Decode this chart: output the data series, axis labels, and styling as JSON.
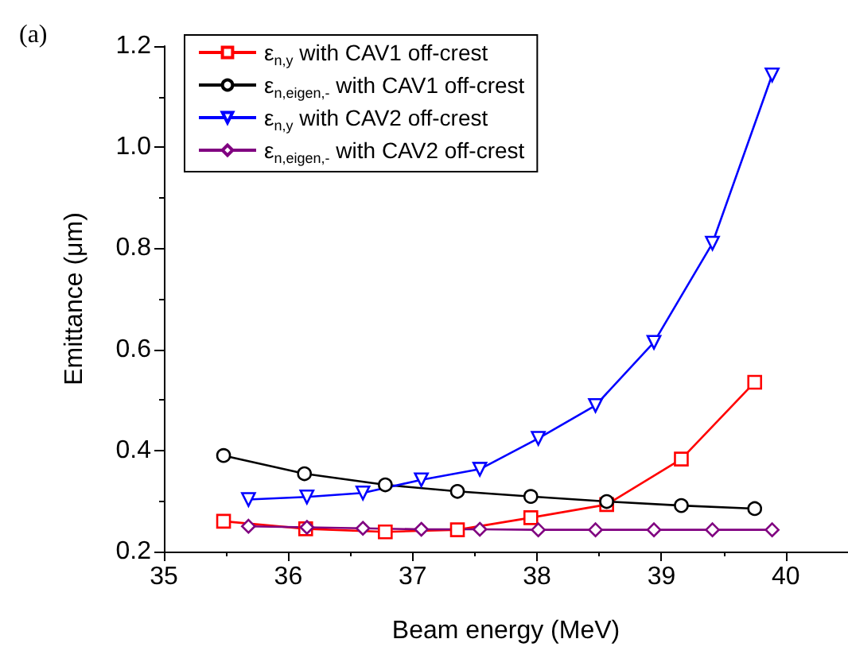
{
  "chart_data": {
    "type": "line",
    "xlabel": "Beam energy (MeV)",
    "ylabel": "Emittance (μm)",
    "annotations": [
      "(a)"
    ],
    "xlim": [
      35,
      40.5
    ],
    "xticks": [
      35,
      36,
      37,
      38,
      39,
      40
    ],
    "ylim": [
      0.2,
      1.2
    ],
    "yticks": [
      0.2,
      0.4,
      0.6,
      0.8,
      {
        "value": 1,
        "label": "1.0"
      },
      1.2
    ],
    "grid": false,
    "legend": "top left",
    "line_style": "solid",
    "series": [
      {
        "name": "ε$_{n,y}$ with CAV1 off-crest",
        "color": "#ff0000",
        "marker": "square",
        "x": [
          35.48,
          36.14,
          36.78,
          37.36,
          37.95,
          38.56,
          39.16,
          39.75
        ],
        "values": [
          0.26,
          0.245,
          0.239,
          0.243,
          0.267,
          0.293,
          0.383,
          0.535
        ]
      },
      {
        "name": "ε$_{n,eigen,-}$ with CAV1 off-crest",
        "color": "#000000",
        "marker": "circle",
        "x": [
          35.48,
          36.13,
          36.78,
          37.36,
          37.95,
          38.56,
          39.16,
          39.75
        ],
        "values": [
          0.39,
          0.354,
          0.332,
          0.319,
          0.309,
          0.299,
          0.291,
          0.285
        ]
      },
      {
        "name": "ε$_{n,y}$ with CAV2 off-crest",
        "color": "#0000ff",
        "marker": "triangle",
        "x": [
          35.68,
          36.15,
          36.6,
          37.07,
          37.54,
          38.01,
          38.47,
          38.94,
          39.41,
          39.89
        ],
        "values": [
          0.303,
          0.308,
          0.316,
          0.342,
          0.363,
          0.424,
          0.489,
          0.614,
          0.81,
          1.143
        ]
      },
      {
        "name": "ε$_{n,eigen,-}$ with CAV2 off-crest",
        "color": "#800080",
        "marker": "diamond",
        "x": [
          35.68,
          36.15,
          36.6,
          37.07,
          37.54,
          38.01,
          38.47,
          38.94,
          39.41,
          39.89
        ],
        "values": [
          0.25,
          0.248,
          0.246,
          0.244,
          0.244,
          0.243,
          0.243,
          0.243,
          0.243,
          0.243
        ]
      }
    ]
  }
}
